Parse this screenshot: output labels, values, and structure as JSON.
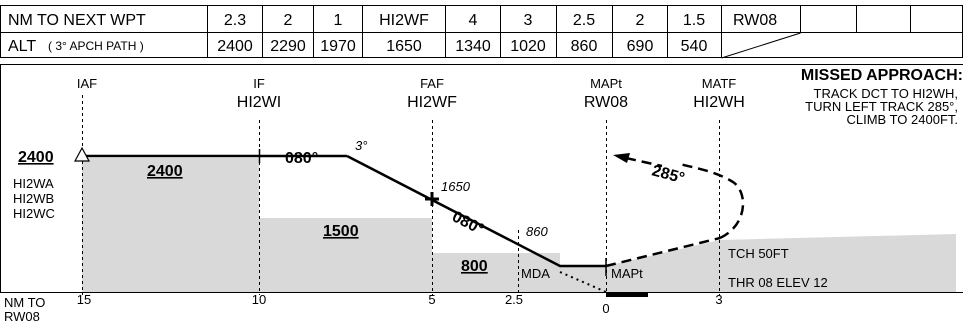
{
  "table": {
    "row1_label": "NM TO NEXT WPT",
    "row1_values": [
      "2.3",
      "2",
      "1",
      "HI2WF",
      "4",
      "3",
      "2.5",
      "2",
      "1.5",
      "RW08"
    ],
    "row2_label": "ALT",
    "row2_label_note": "( 3° APCH PATH )",
    "row2_values": [
      "2400",
      "2290",
      "1970",
      "1650",
      "1340",
      "1020",
      "860",
      "690",
      "540"
    ]
  },
  "fixes": {
    "iaf": "IAF",
    "if_label": "IF",
    "if_name": "HI2WI",
    "faf_label": "FAF",
    "faf_name": "HI2WF",
    "mapt_label": "MAPt",
    "mapt_name": "RW08",
    "matf_label": "MATF",
    "matf_name": "HI2WH"
  },
  "missed_approach": {
    "title": "MISSED APPROACH:",
    "line1": "TRACK DCT TO HI2WH,",
    "line2": "TURN LEFT TRACK 285°,",
    "line3": "CLIMB TO 2400FT."
  },
  "profile": {
    "initial_alt": "2400",
    "iaf_fixes": [
      "HI2WA",
      "HI2WB",
      "HI2WC"
    ],
    "seg_alt_1": "2400",
    "seg_alt_2": "1500",
    "seg_alt_3": "800",
    "track_1": "080°",
    "track_2": "080°",
    "glide_angle": "3°",
    "faf_alt": "1650",
    "step_alt": "860",
    "missed_track": "285°",
    "mda": "MDA",
    "mapt": "MAPt",
    "tch": "TCH 50FT",
    "thr": "THR 08 ELEV 12"
  },
  "axis": {
    "label_line1": "NM TO",
    "label_line2": "RW08",
    "ticks": [
      "15",
      "10",
      "5",
      "2.5",
      "0",
      "3"
    ]
  },
  "colors": {
    "terrain": "#d9d9d9",
    "line": "#000000"
  }
}
